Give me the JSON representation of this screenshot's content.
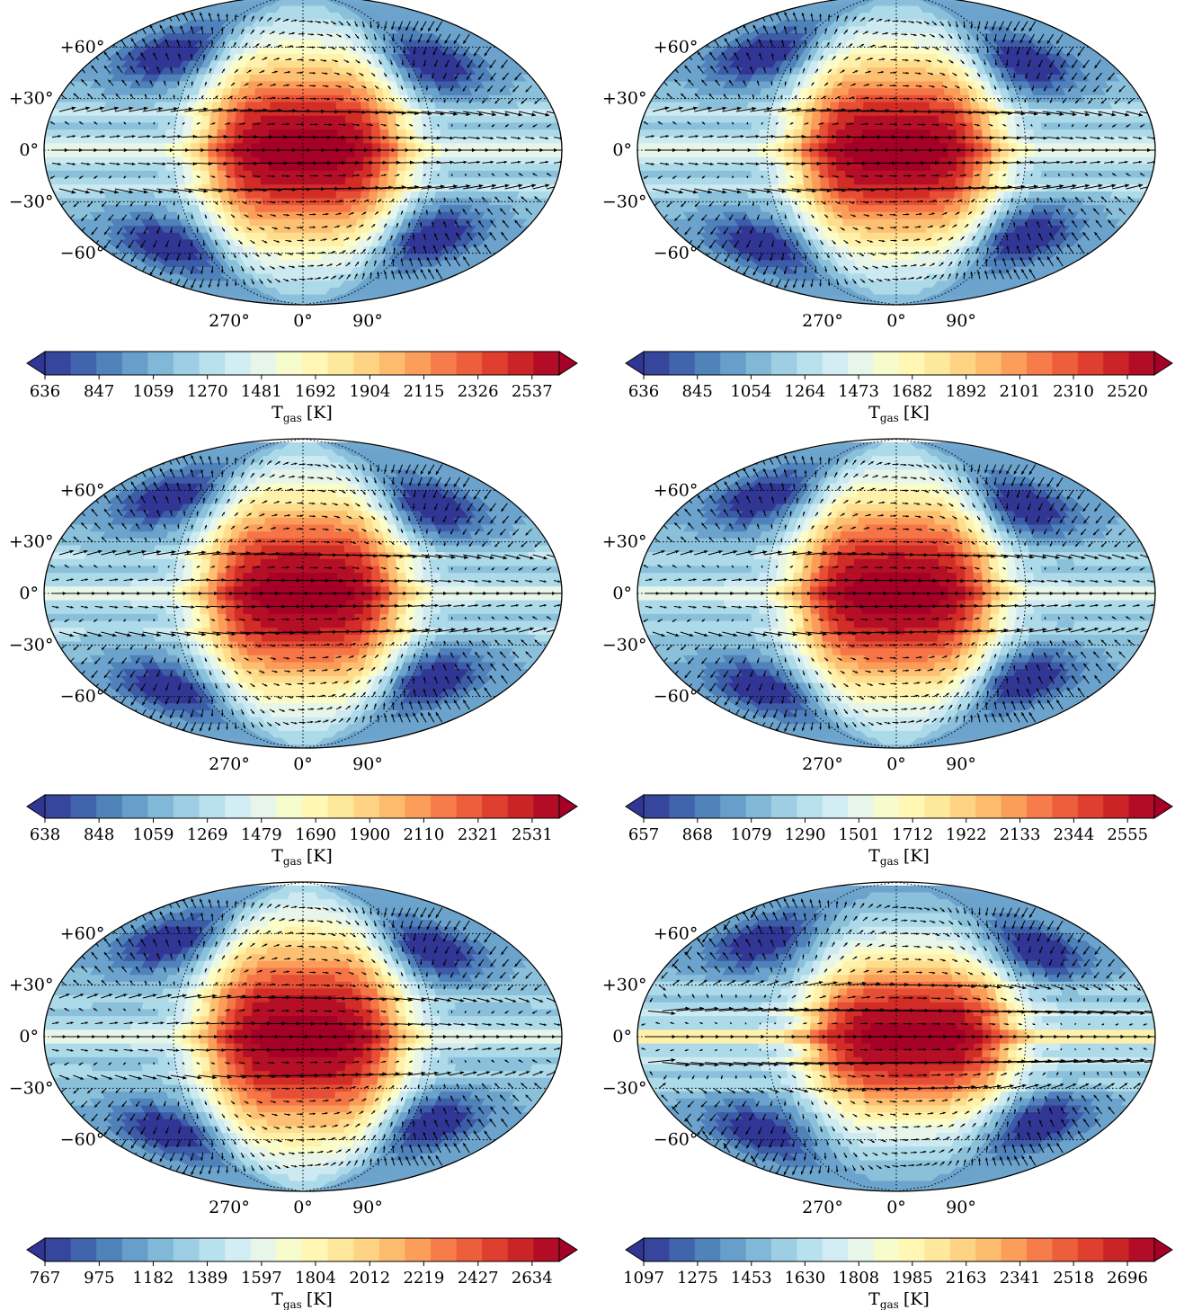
{
  "chart_data": [
    {
      "type": "heatmap",
      "panel": "top-left",
      "lat_labels": [
        "+60°",
        "+30°",
        "0°",
        "−30°",
        "−60°"
      ],
      "lon_labels": [
        "270°",
        "0°",
        "90°"
      ],
      "colorbar": {
        "ticks": [
          "636",
          "847",
          "1059",
          "1270",
          "1481",
          "1692",
          "1904",
          "2115",
          "2326",
          "2537"
        ],
        "label": "T_gas [K]",
        "label_main": "T",
        "label_sub": "gas",
        "label_unit": "[K]",
        "vmin": 636,
        "vmax": 2643
      },
      "map": {
        "hot_center_lon": 0,
        "hot_lat_spread": 36,
        "equator_jet": 0.55,
        "jets": [
          {
            "lat": 22,
            "strength": 0.55
          },
          {
            "lat": -22,
            "strength": 0.55
          },
          {
            "lat": 8,
            "strength": 0.35
          },
          {
            "lat": -8,
            "strength": 0.35
          }
        ],
        "cold_spots": [
          [
            110,
            50
          ],
          [
            110,
            -50
          ],
          [
            -120,
            55
          ],
          [
            -120,
            -55
          ]
        ]
      }
    },
    {
      "type": "heatmap",
      "panel": "top-right",
      "lat_labels": [
        "+60°",
        "+30°",
        "0°",
        "−30°",
        "−60°"
      ],
      "lon_labels": [
        "270°",
        "0°",
        "90°"
      ],
      "colorbar": {
        "ticks": [
          "636",
          "845",
          "1054",
          "1264",
          "1473",
          "1682",
          "1892",
          "2101",
          "2310",
          "2520"
        ],
        "label": "T_gas [K]",
        "label_main": "T",
        "label_sub": "gas",
        "label_unit": "[K]",
        "vmin": 636,
        "vmax": 2625
      },
      "map": {
        "hot_center_lon": 0,
        "hot_lat_spread": 36,
        "equator_jet": 0.55,
        "jets": [
          {
            "lat": 22,
            "strength": 0.55
          },
          {
            "lat": -22,
            "strength": 0.55
          },
          {
            "lat": 8,
            "strength": 0.35
          },
          {
            "lat": -8,
            "strength": 0.35
          }
        ],
        "cold_spots": [
          [
            110,
            50
          ],
          [
            110,
            -50
          ],
          [
            -120,
            55
          ],
          [
            -120,
            -55
          ]
        ]
      }
    },
    {
      "type": "heatmap",
      "panel": "middle-left",
      "lat_labels": [
        "+60°",
        "+30°",
        "0°",
        "−30°",
        "−60°"
      ],
      "lon_labels": [
        "270°",
        "0°",
        "90°"
      ],
      "colorbar": {
        "ticks": [
          "638",
          "848",
          "1059",
          "1269",
          "1479",
          "1690",
          "1900",
          "2110",
          "2321",
          "2531"
        ],
        "label": "T_gas [K]",
        "label_main": "T",
        "label_sub": "gas",
        "label_unit": "[K]",
        "vmin": 638,
        "vmax": 2636
      },
      "map": {
        "hot_center_lon": 0,
        "hot_lat_spread": 38,
        "equator_jet": 0.5,
        "jets": [
          {
            "lat": 22,
            "strength": 0.5
          },
          {
            "lat": -22,
            "strength": 0.5
          },
          {
            "lat": 8,
            "strength": 0.3
          },
          {
            "lat": -8,
            "strength": 0.3
          }
        ],
        "cold_spots": [
          [
            110,
            50
          ],
          [
            110,
            -50
          ],
          [
            -120,
            55
          ],
          [
            -120,
            -55
          ]
        ]
      }
    },
    {
      "type": "heatmap",
      "panel": "middle-right",
      "lat_labels": [
        "+60°",
        "+30°",
        "0°",
        "−30°",
        "−60°"
      ],
      "lon_labels": [
        "270°",
        "0°",
        "90°"
      ],
      "colorbar": {
        "ticks": [
          "657",
          "868",
          "1079",
          "1290",
          "1501",
          "1712",
          "1922",
          "2133",
          "2344",
          "2555"
        ],
        "label": "T_gas [K]",
        "label_main": "T",
        "label_sub": "gas",
        "label_unit": "[K]",
        "vmin": 657,
        "vmax": 2660
      },
      "map": {
        "hot_center_lon": 0,
        "hot_lat_spread": 38,
        "equator_jet": 0.5,
        "jets": [
          {
            "lat": 22,
            "strength": 0.45
          },
          {
            "lat": -22,
            "strength": 0.45
          },
          {
            "lat": 8,
            "strength": 0.3
          },
          {
            "lat": -8,
            "strength": 0.3
          }
        ],
        "cold_spots": [
          [
            110,
            50
          ],
          [
            110,
            -50
          ],
          [
            -120,
            55
          ],
          [
            -120,
            -55
          ]
        ]
      }
    },
    {
      "type": "heatmap",
      "panel": "bottom-left",
      "lat_labels": [
        "+60°",
        "+30°",
        "0°",
        "−30°",
        "−60°"
      ],
      "lon_labels": [
        "270°",
        "0°",
        "90°"
      ],
      "colorbar": {
        "ticks": [
          "767",
          "975",
          "1182",
          "1389",
          "1597",
          "1804",
          "2012",
          "2219",
          "2427",
          "2634"
        ],
        "label": "T_gas [K]",
        "label_main": "T",
        "label_sub": "gas",
        "label_unit": "[K]",
        "vmin": 767,
        "vmax": 2738
      },
      "map": {
        "hot_center_lon": 0,
        "hot_lat_spread": 40,
        "equator_jet": 0.5,
        "jets": [
          {
            "lat": 22,
            "strength": 0.4
          },
          {
            "lat": -22,
            "strength": 0.4
          },
          {
            "lat": 8,
            "strength": 0.3
          },
          {
            "lat": -8,
            "strength": 0.3
          }
        ],
        "cold_spots": [
          [
            110,
            50
          ],
          [
            110,
            -50
          ],
          [
            -120,
            55
          ],
          [
            -120,
            -55
          ]
        ]
      }
    },
    {
      "type": "heatmap",
      "panel": "bottom-right",
      "lat_labels": [
        "+60°",
        "+30°",
        "0°",
        "−30°",
        "−60°"
      ],
      "lon_labels": [
        "270°",
        "0°",
        "90°"
      ],
      "colorbar": {
        "ticks": [
          "1097",
          "1275",
          "1453",
          "1630",
          "1808",
          "1985",
          "2163",
          "2341",
          "2518",
          "2696"
        ],
        "label": "T_gas [K]",
        "label_main": "T",
        "label_sub": "gas",
        "label_unit": "[K]",
        "vmin": 1097,
        "vmax": 2785
      },
      "map": {
        "hot_center_lon": 10,
        "hot_lat_spread": 30,
        "equator_jet": 0.9,
        "jets": [
          {
            "lat": 15,
            "strength": 0.8
          },
          {
            "lat": -15,
            "strength": 0.8
          },
          {
            "lat": 28,
            "strength": 0.4
          },
          {
            "lat": -28,
            "strength": 0.4
          }
        ],
        "cold_spots": [
          [
            120,
            50
          ],
          [
            120,
            -50
          ],
          [
            -120,
            55
          ],
          [
            -120,
            -55
          ]
        ]
      }
    }
  ],
  "colormap": [
    "#313695",
    "#4575b4",
    "#74add1",
    "#abd9e9",
    "#e0f3f8",
    "#ffffbf",
    "#fee090",
    "#fdae61",
    "#f46d43",
    "#d73027",
    "#a50026"
  ]
}
